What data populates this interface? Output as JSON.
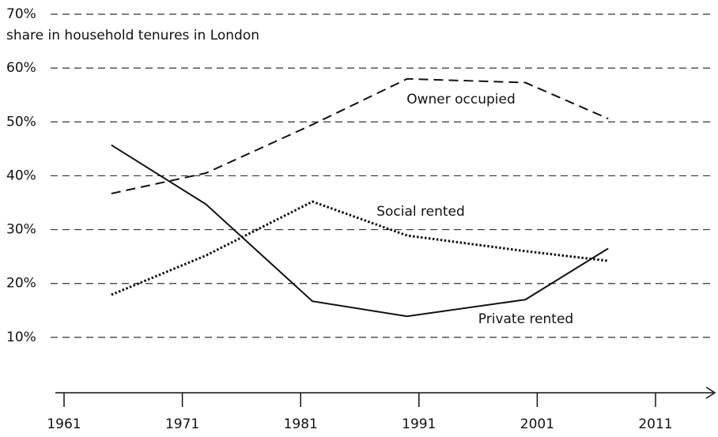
{
  "chart_data": {
    "type": "line",
    "subtitle": "share in household tenures in London",
    "x": [
      1965,
      1973,
      1982,
      1990,
      2000,
      2007
    ],
    "series": [
      {
        "name": "Owner occupied",
        "color": "#111111",
        "dash": "dashed",
        "values": [
          36.7,
          40.5,
          49.5,
          58,
          57.3,
          50.6
        ]
      },
      {
        "name": "Social rented",
        "color": "#111111",
        "dash": "dotted",
        "values": [
          17.9,
          25.2,
          35.2,
          28.9,
          26,
          24.2
        ]
      },
      {
        "name": "Private rented",
        "color": "#111111",
        "dash": "solid",
        "values": [
          45.7,
          34.7,
          16.7,
          13.9,
          17,
          26.5
        ]
      }
    ],
    "xlim": [
      1961,
      2011
    ],
    "xticks": [
      1961,
      1971,
      1981,
      1991,
      2001,
      2011
    ],
    "ylim": [
      0,
      70
    ],
    "yticks": [
      {
        "value": 10,
        "label": "10%"
      },
      {
        "value": 20,
        "label": "20%"
      },
      {
        "value": 30,
        "label": "30%"
      },
      {
        "value": 40,
        "label": "40%"
      },
      {
        "value": 50,
        "label": "50%"
      },
      {
        "value": 60,
        "label": "60%"
      },
      {
        "value": 70,
        "label": "70%"
      }
    ],
    "grid": true
  }
}
